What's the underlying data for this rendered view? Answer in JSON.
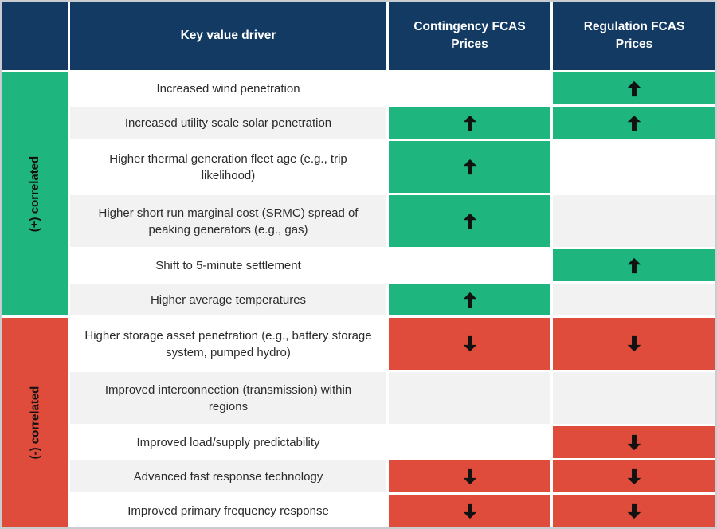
{
  "header": {
    "columns": [
      "Key value driver",
      "Contingency FCAS Prices",
      "Regulation FCAS Prices"
    ]
  },
  "groups": {
    "positive": "(+) correlated",
    "negative": "(-) correlated"
  },
  "colors": {
    "header_navy": "#123A63",
    "positive_green": "#1FB57E",
    "negative_red": "#E04C3B",
    "row_alt_gray": "#F2F2F2",
    "row_white": "#FFFFFF",
    "arrow_black": "#121212",
    "frame_gray": "#C9CCD1"
  },
  "icons": {
    "up": "up-arrow",
    "down": "down-arrow"
  },
  "chart_data": {
    "type": "table",
    "title": "Key value driver impact on Contingency and Regulation FCAS Prices",
    "columns": [
      "Key value driver",
      "Contingency FCAS Prices",
      "Regulation FCAS Prices"
    ],
    "row_groups": [
      {
        "label": "(+) correlated",
        "row_span": [
          0,
          5
        ]
      },
      {
        "label": "(-) correlated",
        "row_span": [
          6,
          10
        ]
      }
    ],
    "rows": [
      {
        "group": "(+) correlated",
        "driver": "Increased wind penetration",
        "contingency": "",
        "regulation": "up"
      },
      {
        "group": "(+) correlated",
        "driver": "Increased utility scale solar penetration",
        "contingency": "up",
        "regulation": "up"
      },
      {
        "group": "(+) correlated",
        "driver": "Higher thermal generation fleet age (e.g., trip likelihood)",
        "contingency": "up",
        "regulation": ""
      },
      {
        "group": "(+) correlated",
        "driver": "Higher short run marginal cost (SRMC) spread of peaking generators (e.g., gas)",
        "contingency": "up",
        "regulation": ""
      },
      {
        "group": "(+) correlated",
        "driver": "Shift to 5-minute settlement",
        "contingency": "",
        "regulation": "up"
      },
      {
        "group": "(+) correlated",
        "driver": "Higher average temperatures",
        "contingency": "up",
        "regulation": ""
      },
      {
        "group": "(-) correlated",
        "driver": "Higher storage asset penetration (e.g., battery storage system, pumped hydro)",
        "contingency": "down",
        "regulation": "down"
      },
      {
        "group": "(-) correlated",
        "driver": "Improved interconnection (transmission) within regions",
        "contingency": "",
        "regulation": ""
      },
      {
        "group": "(-) correlated",
        "driver": "Improved load/supply predictability",
        "contingency": "",
        "regulation": "down"
      },
      {
        "group": "(-) correlated",
        "driver": "Advanced fast response technology",
        "contingency": "down",
        "regulation": "down"
      },
      {
        "group": "(-) correlated",
        "driver": "Improved primary frequency response",
        "contingency": "down",
        "regulation": "down"
      }
    ]
  }
}
